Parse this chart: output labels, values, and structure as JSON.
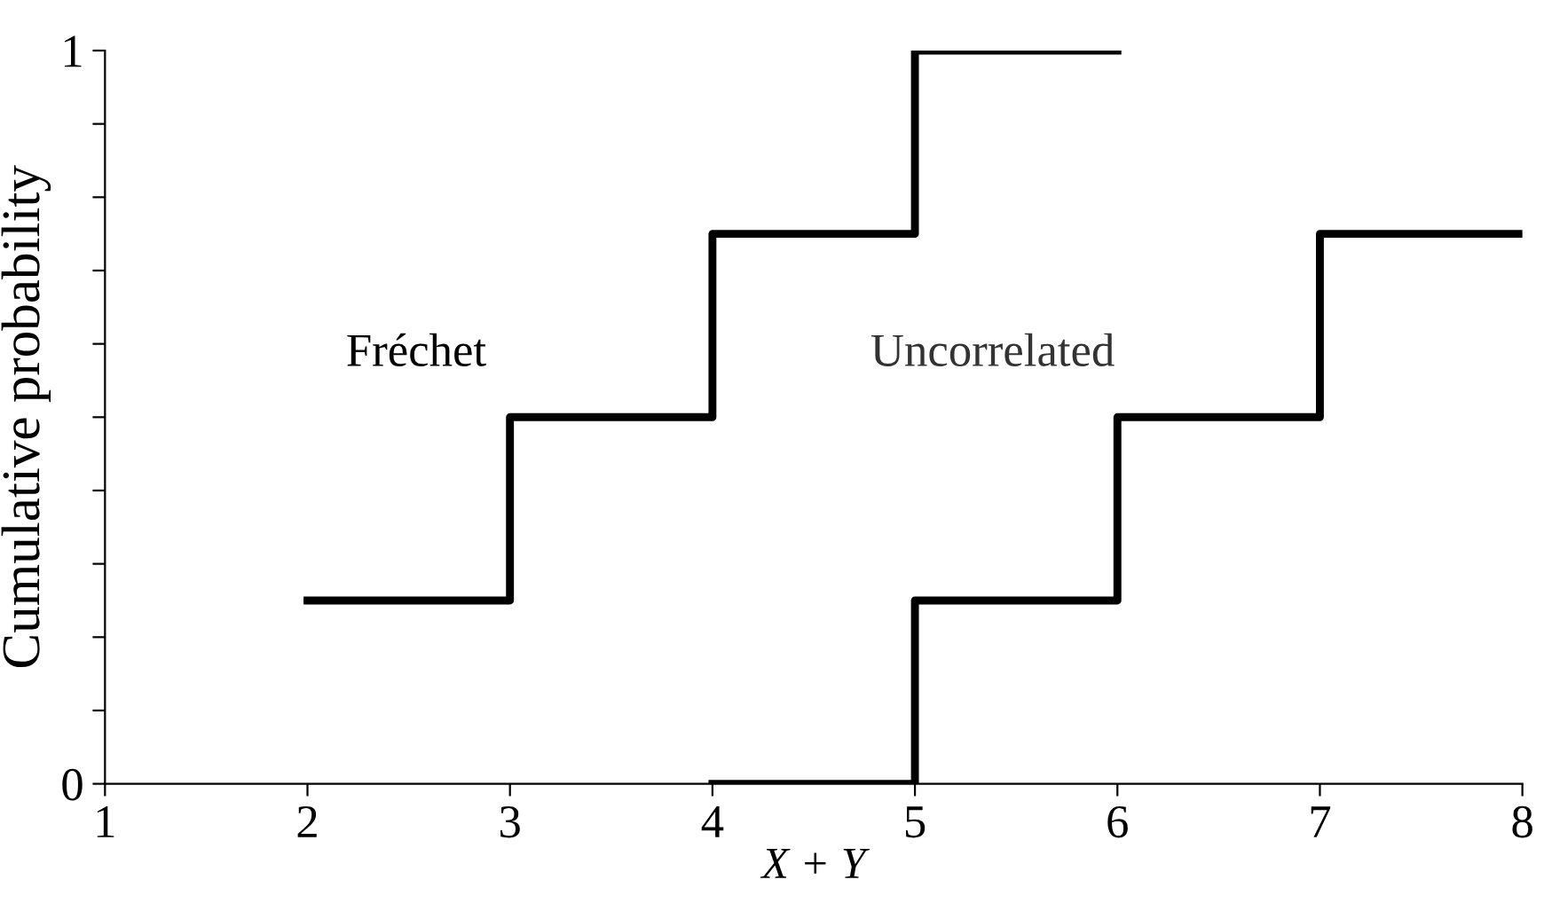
{
  "chart_data": {
    "type": "step",
    "xlabel": "X + Y",
    "ylabel": "Cumulative probability",
    "annotations": [
      "Fréchet",
      "Uncorrelated"
    ],
    "series": [
      {
        "color": "#000000",
        "x": [
          2,
          3,
          4,
          5,
          6
        ],
        "values": [
          0.25,
          0.5,
          0.75,
          1,
          1
        ]
      },
      {
        "color": "#000000",
        "x": [
          4,
          5,
          6,
          7,
          8
        ],
        "values": [
          0,
          0.25,
          0.5,
          0.75,
          0.75
        ]
      }
    ],
    "xlim": [
      1,
      8
    ],
    "ylim": [
      0,
      1
    ],
    "xticks": [
      1,
      2,
      3,
      4,
      5,
      6,
      7,
      8
    ],
    "yticks": [
      0,
      {
        "value": 0.1,
        "label": null
      },
      {
        "value": 0.2,
        "label": null
      },
      {
        "value": 0.3,
        "label": null
      },
      {
        "value": 0.4,
        "label": null
      },
      {
        "value": 0.5,
        "label": null
      },
      {
        "value": 0.6,
        "label": null
      },
      {
        "value": 0.7,
        "label": null
      },
      {
        "value": 0.8,
        "label": null
      },
      {
        "value": 0.9,
        "label": null
      },
      1
    ],
    "grid": false,
    "line_style": "solid"
  }
}
